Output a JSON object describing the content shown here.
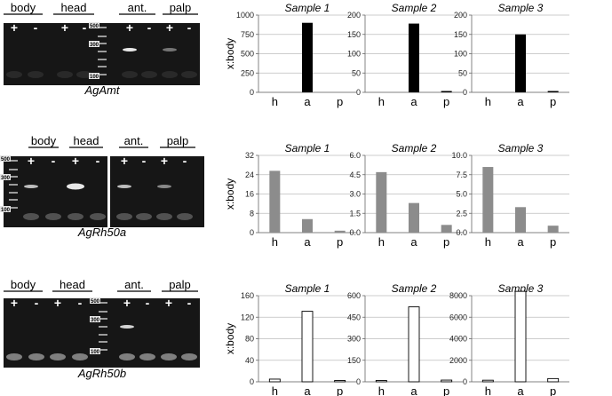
{
  "gels": [
    {
      "gene": "AgAmt",
      "groups_left": [
        "body",
        "head"
      ],
      "groups_right": [
        "ant.",
        "palp"
      ],
      "signs": [
        "+",
        "-"
      ],
      "ladder": [
        "500",
        "300",
        "100"
      ],
      "split": false
    },
    {
      "gene": "AgRh50a",
      "groups_left": [
        "body",
        "head"
      ],
      "groups_right": [
        "ant.",
        "palp"
      ],
      "signs": [
        "+",
        "-"
      ],
      "ladder": [
        "500",
        "300",
        "100"
      ],
      "split": true
    },
    {
      "gene": "AgRh50b",
      "groups_left": [
        "body",
        "head"
      ],
      "groups_right": [
        "ant.",
        "palp"
      ],
      "signs": [
        "+",
        "-"
      ],
      "ladder": [
        "500",
        "300",
        "100"
      ],
      "split": false
    }
  ],
  "colors": {
    "black_bar": "#000000",
    "gray_bar": "#8c8c8c",
    "white_bar": "#ffffff",
    "gel_bg": "#161616",
    "band": "#e8e8e8"
  },
  "chart_data": [
    {
      "row": 0,
      "type": "bar",
      "title": "Sample 1",
      "ylabel": "x:body",
      "categories": [
        "h",
        "a",
        "p"
      ],
      "values": [
        0,
        900,
        0
      ],
      "ylim": [
        0,
        1000
      ],
      "yticks": [
        "0",
        "250",
        "500",
        "750",
        "1000"
      ],
      "fill": "black"
    },
    {
      "row": 0,
      "type": "bar",
      "title": "Sample 2",
      "ylabel": "",
      "categories": [
        "h",
        "a",
        "p"
      ],
      "values": [
        0,
        178,
        3
      ],
      "ylim": [
        0,
        200
      ],
      "yticks": [
        "0",
        "50",
        "100",
        "150",
        "200"
      ],
      "fill": "black"
    },
    {
      "row": 0,
      "type": "bar",
      "title": "Sample 3",
      "ylabel": "",
      "categories": [
        "h",
        "a",
        "p"
      ],
      "values": [
        0,
        150,
        3
      ],
      "ylim": [
        0,
        200
      ],
      "yticks": [
        "0",
        "50",
        "100",
        "150",
        "200"
      ],
      "fill": "black"
    },
    {
      "row": 1,
      "type": "bar",
      "title": "Sample 1",
      "ylabel": "x:body",
      "categories": [
        "h",
        "a",
        "p"
      ],
      "values": [
        25.6,
        5.6,
        0.8
      ],
      "ylim": [
        0,
        32
      ],
      "yticks": [
        "0",
        "8",
        "16",
        "24",
        "32"
      ],
      "fill": "gray"
    },
    {
      "row": 1,
      "type": "bar",
      "title": "Sample 2",
      "ylabel": "",
      "categories": [
        "h",
        "a",
        "p"
      ],
      "values": [
        4.7,
        2.3,
        0.6
      ],
      "ylim": [
        0,
        6
      ],
      "yticks": [
        "0.0",
        "1.5",
        "3.0",
        "4.5",
        "6.0"
      ],
      "fill": "gray"
    },
    {
      "row": 1,
      "type": "bar",
      "title": "Sample 3",
      "ylabel": "",
      "categories": [
        "h",
        "a",
        "p"
      ],
      "values": [
        8.5,
        3.3,
        0.9
      ],
      "ylim": [
        0,
        10
      ],
      "yticks": [
        "0.0",
        "2.5",
        "5.0",
        "7.5",
        "10.0"
      ],
      "fill": "gray"
    },
    {
      "row": 2,
      "type": "bar",
      "title": "Sample 1",
      "ylabel": "x:body",
      "categories": [
        "h",
        "a",
        "p"
      ],
      "values": [
        5,
        131,
        1
      ],
      "ylim": [
        0,
        160
      ],
      "yticks": [
        "0",
        "40",
        "80",
        "120",
        "160"
      ],
      "fill": "white"
    },
    {
      "row": 2,
      "type": "bar",
      "title": "Sample 2",
      "ylabel": "",
      "categories": [
        "h",
        "a",
        "p"
      ],
      "values": [
        3,
        522,
        12
      ],
      "ylim": [
        0,
        600
      ],
      "yticks": [
        "0",
        "150",
        "300",
        "450",
        "600"
      ],
      "fill": "white"
    },
    {
      "row": 2,
      "type": "bar",
      "title": "Sample 3",
      "ylabel": "",
      "categories": [
        "h",
        "a",
        "p"
      ],
      "values": [
        150,
        8400,
        300
      ],
      "ylim": [
        0,
        8000
      ],
      "yticks": [
        "0",
        "2000",
        "4000",
        "6000",
        "8000"
      ],
      "fill": "white"
    }
  ]
}
